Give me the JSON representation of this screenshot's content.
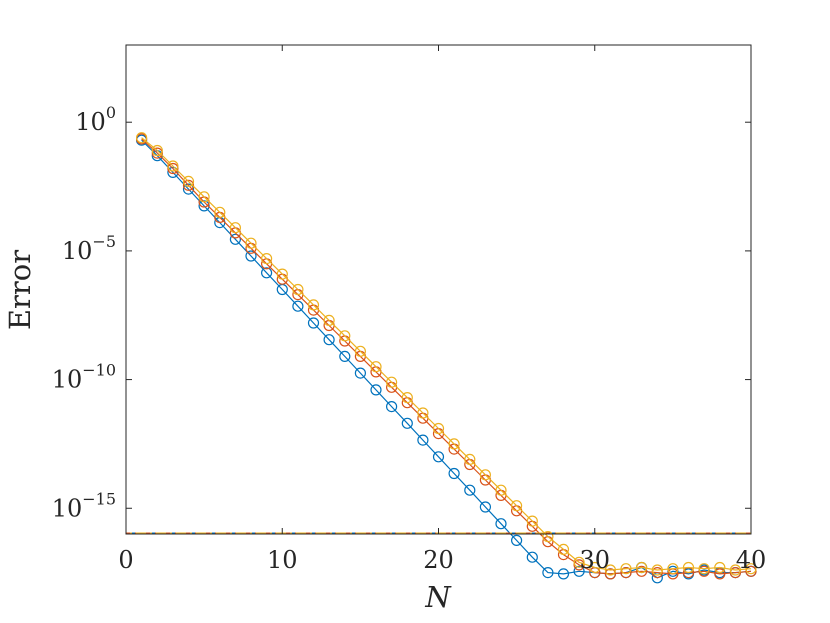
{
  "chart_data": {
    "type": "line",
    "xlabel": "N",
    "ylabel": "Error",
    "xlim": [
      0,
      40
    ],
    "ylim_log10": [
      -16,
      3
    ],
    "y_scale": "log",
    "x_ticks": [
      0,
      10,
      20,
      30,
      40
    ],
    "x_tick_labels": [
      "0",
      "10",
      "20",
      "30",
      "40"
    ],
    "y_ticks_log10": [
      0,
      -5,
      -10,
      -15
    ],
    "y_tick_labels": [
      {
        "base": "10",
        "exp": "0"
      },
      {
        "base": "10",
        "exp": "−5"
      },
      {
        "base": "10",
        "exp": "−10"
      },
      {
        "base": "10",
        "exp": "−15"
      }
    ],
    "grid": false,
    "legend": "none",
    "x": [
      1,
      2,
      3,
      4,
      5,
      6,
      7,
      8,
      9,
      10,
      11,
      12,
      13,
      14,
      15,
      16,
      17,
      18,
      19,
      20,
      21,
      22,
      23,
      24,
      25,
      26,
      27,
      28,
      29,
      30,
      31,
      32,
      33,
      34,
      35,
      36,
      37,
      38,
      39,
      40
    ],
    "series": [
      {
        "color": "#0072bd",
        "log10_values": [
          -0.7,
          -1.3,
          -1.95,
          -2.6,
          -3.25,
          -3.9,
          -4.55,
          -5.2,
          -5.85,
          -6.5,
          -7.15,
          -7.8,
          -8.45,
          -9.1,
          -9.75,
          -10.4,
          -11.05,
          -11.7,
          -12.35,
          -13.0,
          -13.65,
          -14.3,
          -14.95,
          -15.6,
          -16.25,
          -16.9,
          -17.5,
          -17.55,
          -17.45,
          -17.5,
          -17.55,
          -17.5,
          -17.3,
          -17.7,
          -17.45,
          -17.55,
          -17.4,
          -17.5,
          -17.5,
          -17.45
        ]
      },
      {
        "color": "#d95319",
        "log10_values": [
          -0.65,
          -1.2,
          -1.8,
          -2.45,
          -3.1,
          -3.7,
          -4.3,
          -4.9,
          -5.5,
          -6.1,
          -6.7,
          -7.3,
          -7.9,
          -8.5,
          -9.1,
          -9.7,
          -10.3,
          -10.9,
          -11.5,
          -12.1,
          -12.7,
          -13.3,
          -13.9,
          -14.5,
          -15.1,
          -15.7,
          -16.3,
          -16.8,
          -17.2,
          -17.5,
          -17.55,
          -17.5,
          -17.45,
          -17.5,
          -17.55,
          -17.5,
          -17.45,
          -17.55,
          -17.5,
          -17.45
        ]
      },
      {
        "color": "#edb120",
        "log10_values": [
          -0.6,
          -1.1,
          -1.7,
          -2.3,
          -2.9,
          -3.5,
          -4.1,
          -4.7,
          -5.3,
          -5.9,
          -6.5,
          -7.1,
          -7.7,
          -8.3,
          -8.9,
          -9.5,
          -10.1,
          -10.7,
          -11.3,
          -11.9,
          -12.5,
          -13.1,
          -13.7,
          -14.3,
          -14.9,
          -15.5,
          -16.1,
          -16.6,
          -17.1,
          -17.3,
          -17.4,
          -17.35,
          -17.3,
          -17.4,
          -17.35,
          -17.3,
          -17.35,
          -17.3,
          -17.4,
          -17.35
        ]
      }
    ],
    "baselines": [
      {
        "style": "dash-dot",
        "color": "#0072bd",
        "log10_value": -16
      },
      {
        "style": "dash-dot",
        "color": "#d95319",
        "log10_value": -16
      },
      {
        "style": "dash-dot",
        "color": "#edb120",
        "log10_value": -16
      }
    ]
  }
}
